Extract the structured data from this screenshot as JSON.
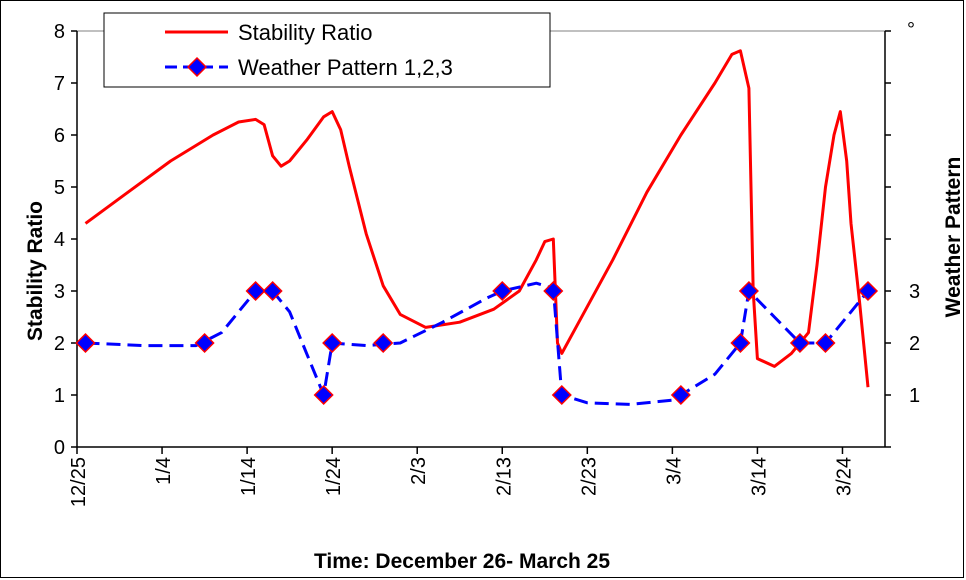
{
  "chart_data": {
    "type": "line",
    "xlabel": "Time: December 26- March 25",
    "ylabel": "Stability Ratio",
    "y2label": "Weather Pattern",
    "ylim": [
      0,
      8
    ],
    "y2lim": [
      0,
      8
    ],
    "yticks": [
      "0",
      "1",
      "2",
      "3",
      "4",
      "5",
      "6",
      "7",
      "8"
    ],
    "y2ticks": [
      "1",
      "2",
      "3"
    ],
    "y2_top_label": "°",
    "xtick_labels": [
      "12/25",
      "1/4",
      "1/14",
      "1/24",
      "2/3",
      "2/13",
      "2/23",
      "3/4",
      "3/14",
      "3/24"
    ],
    "xlim": [
      "2005-12-25",
      "2006-03-30"
    ],
    "legend_position": "top-left",
    "grid": false,
    "series": [
      {
        "name": "Stability Ratio",
        "color": "#ff0000",
        "style": "solid",
        "points": [
          [
            "2005-12-26",
            4.3
          ],
          [
            "2005-12-31",
            4.9
          ],
          [
            "2006-01-05",
            5.5
          ],
          [
            "2006-01-10",
            6.0
          ],
          [
            "2006-01-13",
            6.25
          ],
          [
            "2006-01-15",
            6.3
          ],
          [
            "2006-01-16",
            6.2
          ],
          [
            "2006-01-17",
            5.6
          ],
          [
            "2006-01-18",
            5.4
          ],
          [
            "2006-01-19",
            5.5
          ],
          [
            "2006-01-21",
            5.9
          ],
          [
            "2006-01-23",
            6.35
          ],
          [
            "2006-01-24",
            6.45
          ],
          [
            "2006-01-25",
            6.1
          ],
          [
            "2006-01-26",
            5.4
          ],
          [
            "2006-01-28",
            4.1
          ],
          [
            "2006-01-30",
            3.1
          ],
          [
            "2006-02-01",
            2.55
          ],
          [
            "2006-02-04",
            2.3
          ],
          [
            "2006-02-08",
            2.4
          ],
          [
            "2006-02-12",
            2.65
          ],
          [
            "2006-02-15",
            3.0
          ],
          [
            "2006-02-17",
            3.6
          ],
          [
            "2006-02-18",
            3.95
          ],
          [
            "2006-02-19",
            4.0
          ],
          [
            "2006-02-19T12:00",
            2.0
          ],
          [
            "2006-02-20",
            1.8
          ],
          [
            "2006-02-22",
            2.4
          ],
          [
            "2006-02-26",
            3.6
          ],
          [
            "2006-03-02",
            4.9
          ],
          [
            "2006-03-06",
            6.0
          ],
          [
            "2006-03-10",
            7.0
          ],
          [
            "2006-03-12",
            7.55
          ],
          [
            "2006-03-13",
            7.62
          ],
          [
            "2006-03-14",
            6.9
          ],
          [
            "2006-03-14T12:00",
            3.0
          ],
          [
            "2006-03-15",
            1.7
          ],
          [
            "2006-03-17",
            1.55
          ],
          [
            "2006-03-19",
            1.8
          ],
          [
            "2006-03-21",
            2.2
          ],
          [
            "2006-03-22",
            3.5
          ],
          [
            "2006-03-23",
            5.0
          ],
          [
            "2006-03-24",
            6.0
          ],
          [
            "2006-03-24T18:00",
            6.45
          ],
          [
            "2006-03-25T12:00",
            5.5
          ],
          [
            "2006-03-26",
            4.3
          ],
          [
            "2006-03-27",
            2.8
          ],
          [
            "2006-03-28",
            1.15
          ]
        ]
      },
      {
        "name": "Weather Pattern 1,2,3",
        "color": "#0000ff",
        "style": "dashed",
        "marker": "diamond",
        "marker_color": "#0000ff",
        "marker_edge": "#ff0000",
        "line_points": [
          [
            "2005-12-26",
            2.0
          ],
          [
            "2006-01-02",
            1.95
          ],
          [
            "2006-01-08",
            1.95
          ],
          [
            "2006-01-11",
            2.2
          ],
          [
            "2006-01-14",
            2.8
          ],
          [
            "2006-01-15",
            3.0
          ],
          [
            "2006-01-17",
            3.0
          ],
          [
            "2006-01-19",
            2.6
          ],
          [
            "2006-01-21",
            1.8
          ],
          [
            "2006-01-23",
            1.0
          ],
          [
            "2006-01-24",
            2.0
          ],
          [
            "2006-01-28",
            1.95
          ],
          [
            "2006-02-01",
            2.0
          ],
          [
            "2006-02-06",
            2.4
          ],
          [
            "2006-02-11",
            2.85
          ],
          [
            "2006-02-13",
            3.0
          ],
          [
            "2006-02-17",
            3.15
          ],
          [
            "2006-02-19",
            3.05
          ],
          [
            "2006-02-20",
            1.0
          ],
          [
            "2006-02-23",
            0.85
          ],
          [
            "2006-02-28",
            0.82
          ],
          [
            "2006-03-05",
            0.9
          ],
          [
            "2006-03-10",
            1.4
          ],
          [
            "2006-03-13",
            2.0
          ],
          [
            "2006-03-14",
            3.0
          ],
          [
            "2006-03-17",
            2.5
          ],
          [
            "2006-03-20",
            2.0
          ],
          [
            "2006-03-23",
            2.0
          ],
          [
            "2006-03-26",
            2.6
          ],
          [
            "2006-03-28",
            3.0
          ]
        ],
        "markers": [
          [
            "2005-12-26",
            2
          ],
          [
            "2006-01-09",
            2
          ],
          [
            "2006-01-15",
            3
          ],
          [
            "2006-01-17",
            3
          ],
          [
            "2006-01-23",
            1
          ],
          [
            "2006-01-24",
            2
          ],
          [
            "2006-01-30",
            2
          ],
          [
            "2006-02-13",
            3
          ],
          [
            "2006-02-19",
            3
          ],
          [
            "2006-02-20",
            1
          ],
          [
            "2006-03-06",
            1
          ],
          [
            "2006-03-13",
            2
          ],
          [
            "2006-03-14",
            3
          ],
          [
            "2006-03-20",
            2
          ],
          [
            "2006-03-23",
            2
          ],
          [
            "2006-03-28",
            3
          ]
        ]
      }
    ]
  }
}
